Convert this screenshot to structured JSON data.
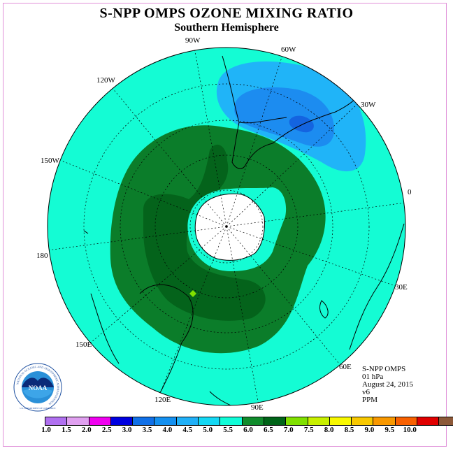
{
  "title": "S-NPP OMPS OZONE MIXING RATIO",
  "subtitle": "Southern Hemisphere",
  "longitude_labels": [
    "90W",
    "60W",
    "30W",
    "0",
    "30E",
    "60E",
    "90E",
    "120E",
    "150E",
    "180",
    "150W",
    "120W"
  ],
  "info": {
    "instrument": "S-NPP OMPS",
    "level": "01 hPa",
    "date": "August 24, 2015",
    "version": "v6",
    "units": "PPM"
  },
  "logo": {
    "text": "NOAA",
    "ring_text": "NATIONAL OCEANIC AND ATMOSPHERIC ADMINISTRATION",
    "ring_text_bottom": "U.S. DEPARTMENT OF COMMERCE"
  },
  "legend": {
    "ticks": [
      "1.0",
      "1.5",
      "2.0",
      "2.5",
      "3.0",
      "3.5",
      "4.0",
      "4.5",
      "5.0",
      "5.5",
      "6.0",
      "6.5",
      "7.0",
      "7.5",
      "8.0",
      "8.5",
      "9.0",
      "9.5",
      "10.0"
    ],
    "colors": [
      "#b070f0",
      "#e0a0f0",
      "#f000f0",
      "#0000e0",
      "#1070e8",
      "#1490f0",
      "#20b0f8",
      "#14d8f4",
      "#10fcd8",
      "#108c2c",
      "#006418",
      "#80e000",
      "#c8f000",
      "#f8f800",
      "#f8c800",
      "#f89800",
      "#f86000",
      "#e00000",
      "#8c5838"
    ]
  },
  "colors": {
    "background_field": "#14fcd4",
    "dark_green": "#0b7d2a",
    "darker_green": "#04631b",
    "blue_light": "#20b4f8",
    "blue_mid": "#1c8cf0",
    "blue_dark": "#1464e0",
    "frame": "#e090d8"
  }
}
